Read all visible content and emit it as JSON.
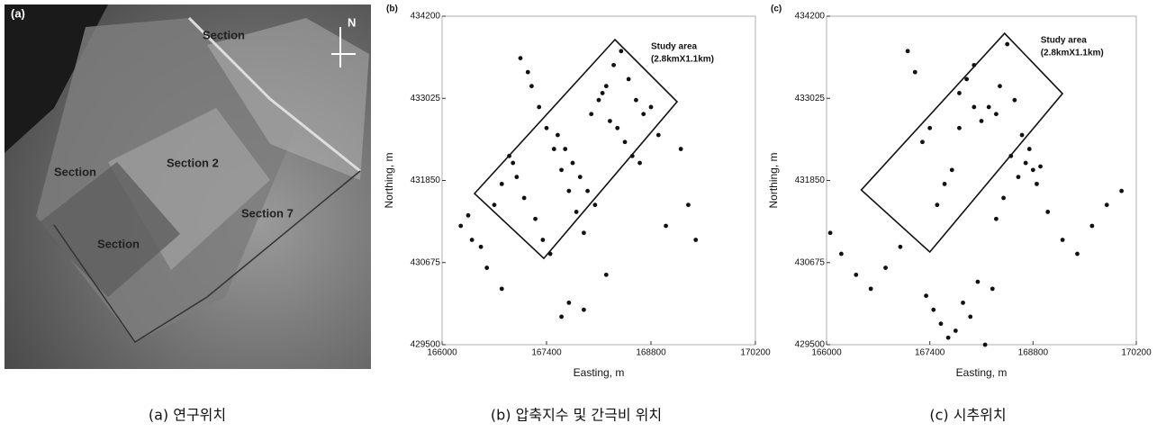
{
  "image_panel": {
    "label": "(a)",
    "annotations": [
      "Section 2",
      "Section 7",
      "Section",
      "Section",
      "Section",
      "N"
    ],
    "caption": "(a) 연구위치"
  },
  "chart_data": [
    {
      "type": "scatter",
      "title": "(b)",
      "x_label": "Easting, m",
      "y_label": "Northing, m",
      "caption": "(b) 압축지수 및 간극비 위치",
      "xlim": [
        166000,
        170200
      ],
      "xticks": [
        166000,
        167400,
        168800,
        170200
      ],
      "ylim": [
        429500,
        434200
      ],
      "yticks": [
        429500,
        430675,
        431850,
        433025,
        434200
      ],
      "color": "#111111",
      "study_area": {
        "label": "Study area",
        "size": "(2.8kmX1.1km)",
        "polygon_x": [
          166435,
          168317,
          169150,
          167364
        ],
        "polygon_y": [
          431663,
          433865,
          432976,
          430735
        ]
      },
      "x": [
        166250,
        166350,
        166520,
        166700,
        166800,
        166950,
        167050,
        167150,
        167200,
        167300,
        167400,
        167500,
        167600,
        167700,
        167800,
        167900,
        168000,
        168100,
        168200,
        168300,
        168400,
        168500,
        168600,
        168700,
        168800,
        168900,
        166900,
        167000,
        167100,
        167250,
        167350,
        167450,
        167550,
        167650,
        167750,
        167850,
        167950,
        168050,
        168150,
        168250,
        168350,
        168450,
        168550,
        168650,
        169000,
        169300,
        169200,
        169400,
        167700,
        167900,
        167600,
        168200,
        166600,
        166800,
        166400
      ],
      "y": [
        431200,
        431350,
        430900,
        431500,
        431800,
        432100,
        433600,
        433400,
        433200,
        432900,
        432600,
        432300,
        432000,
        431700,
        431400,
        431100,
        432800,
        433000,
        433200,
        433500,
        433700,
        433300,
        433000,
        432800,
        432900,
        432500,
        432200,
        431900,
        431600,
        431300,
        431000,
        430800,
        432500,
        432300,
        432100,
        431900,
        431700,
        431500,
        433100,
        432700,
        432600,
        432400,
        432200,
        432100,
        431200,
        431500,
        432300,
        431000,
        430100,
        430000,
        429900,
        430500,
        430600,
        430300,
        431000
      ]
    },
    {
      "type": "scatter",
      "title": "(c)",
      "x_label": "Easting, m",
      "y_label": "Northing, m",
      "caption": "(c) 시추위치",
      "xlim": [
        166000,
        170200
      ],
      "xticks": [
        166000,
        167400,
        168800,
        170200
      ],
      "ylim": [
        429500,
        434200
      ],
      "yticks": [
        429500,
        430675,
        431850,
        433025,
        434200
      ],
      "color": "#111111",
      "study_area": {
        "label": "Study area",
        "size": "(2.8kmX1.1km)",
        "polygon_x": [
          166471,
          168414,
          169199,
          167400
        ],
        "polygon_y": [
          431714,
          433955,
          433092,
          430826
        ]
      },
      "x": [
        166050,
        166200,
        166400,
        166600,
        166800,
        167000,
        167100,
        167200,
        167300,
        167400,
        167500,
        167600,
        167700,
        167800,
        167900,
        168000,
        168100,
        168200,
        168300,
        168400,
        168500,
        168600,
        168700,
        168800,
        168900,
        169000,
        169200,
        169400,
        169600,
        169800,
        170000,
        167350,
        167450,
        167550,
        167650,
        167750,
        167850,
        167950,
        168050,
        168150,
        168250,
        168350,
        168450,
        168550,
        168650,
        168750,
        168850,
        168300,
        167800,
        168000
      ],
      "y": [
        431100,
        430800,
        430500,
        430300,
        430600,
        430900,
        433700,
        433400,
        432400,
        432600,
        431500,
        431800,
        432000,
        433100,
        433300,
        433500,
        432700,
        432900,
        431300,
        431600,
        432200,
        431900,
        432100,
        432000,
        432050,
        431400,
        431000,
        430800,
        431200,
        431500,
        431700,
        430200,
        430000,
        429800,
        429600,
        429700,
        430100,
        429900,
        430400,
        429500,
        430300,
        433200,
        433800,
        433000,
        432500,
        432300,
        431800,
        432800,
        432600,
        432900
      ]
    }
  ]
}
